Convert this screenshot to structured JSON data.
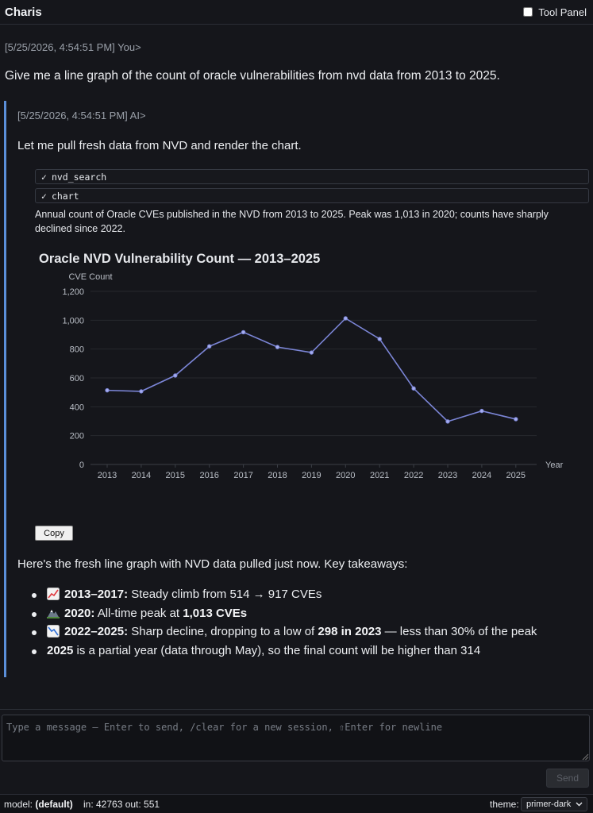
{
  "header": {
    "title": "Charis",
    "tool_panel_label": "Tool Panel"
  },
  "user_message": {
    "timestamp": "[5/25/2026, 4:54:51 PM] You>",
    "text": "Give me a line graph of the count of oracle vulnerabilities from nvd data from 2013 to 2025."
  },
  "ai_message": {
    "timestamp": "[5/25/2026, 4:54:51 PM] AI>",
    "intro": "Let me pull fresh data from NVD and render the chart.",
    "tool_calls": [
      {
        "check": "✓",
        "name": "nvd_search"
      },
      {
        "check": "✓",
        "name": "chart"
      }
    ],
    "caption": "Annual count of Oracle CVEs published in the NVD from 2013 to 2025. Peak was 1,013 in 2020; counts have sharply declined since 2022.",
    "copy_label": "Copy",
    "summary": "Here's the fresh line graph with NVD data pulled just now. Key takeaways:",
    "bullets": [
      {
        "icon": "chart-increasing-icon",
        "bold1": "2013–2017:",
        "text1": " Steady climb from 514 → 917 CVEs",
        "bold2": "",
        "text2": ""
      },
      {
        "icon": "mountain-icon",
        "bold1": "2020:",
        "text1": " All-time peak at ",
        "bold2": "1,013 CVEs",
        "text2": ""
      },
      {
        "icon": "chart-decreasing-icon",
        "bold1": "2022–2025:",
        "text1": " Sharp decline, dropping to a low of ",
        "bold2": "298 in 2023",
        "text2": " — less than 30% of the peak"
      },
      {
        "icon": "",
        "bold1": "2025",
        "text1": " is a partial year (data through May), so the final count will be higher than 314",
        "bold2": "",
        "text2": ""
      }
    ]
  },
  "composer": {
    "placeholder": "Type a message — Enter to send, /clear for a new session, ⇧Enter for newline",
    "send_label": "Send"
  },
  "footer": {
    "model_label": "model:",
    "model_value": "(default)",
    "tokens": "in: 42763 out: 551",
    "theme_label": "theme:",
    "theme_value": "primer-dark"
  },
  "colors": {
    "accent": "#5b8fd9",
    "line": "#7b85d6",
    "background": "#15161b"
  },
  "chart_data": {
    "type": "line",
    "title": "Oracle NVD Vulnerability Count — 2013–2025",
    "xlabel": "Year",
    "ylabel": "CVE Count",
    "categories": [
      "2013",
      "2014",
      "2015",
      "2016",
      "2017",
      "2018",
      "2019",
      "2020",
      "2021",
      "2022",
      "2023",
      "2024",
      "2025"
    ],
    "values": [
      514,
      507,
      617,
      819,
      917,
      814,
      776,
      1013,
      870,
      527,
      298,
      371,
      314
    ],
    "y_ticks": [
      "0",
      "200",
      "400",
      "600",
      "800",
      "1,000",
      "1,200"
    ],
    "ylim": [
      0,
      1200
    ],
    "grid": true,
    "legend": "none"
  }
}
